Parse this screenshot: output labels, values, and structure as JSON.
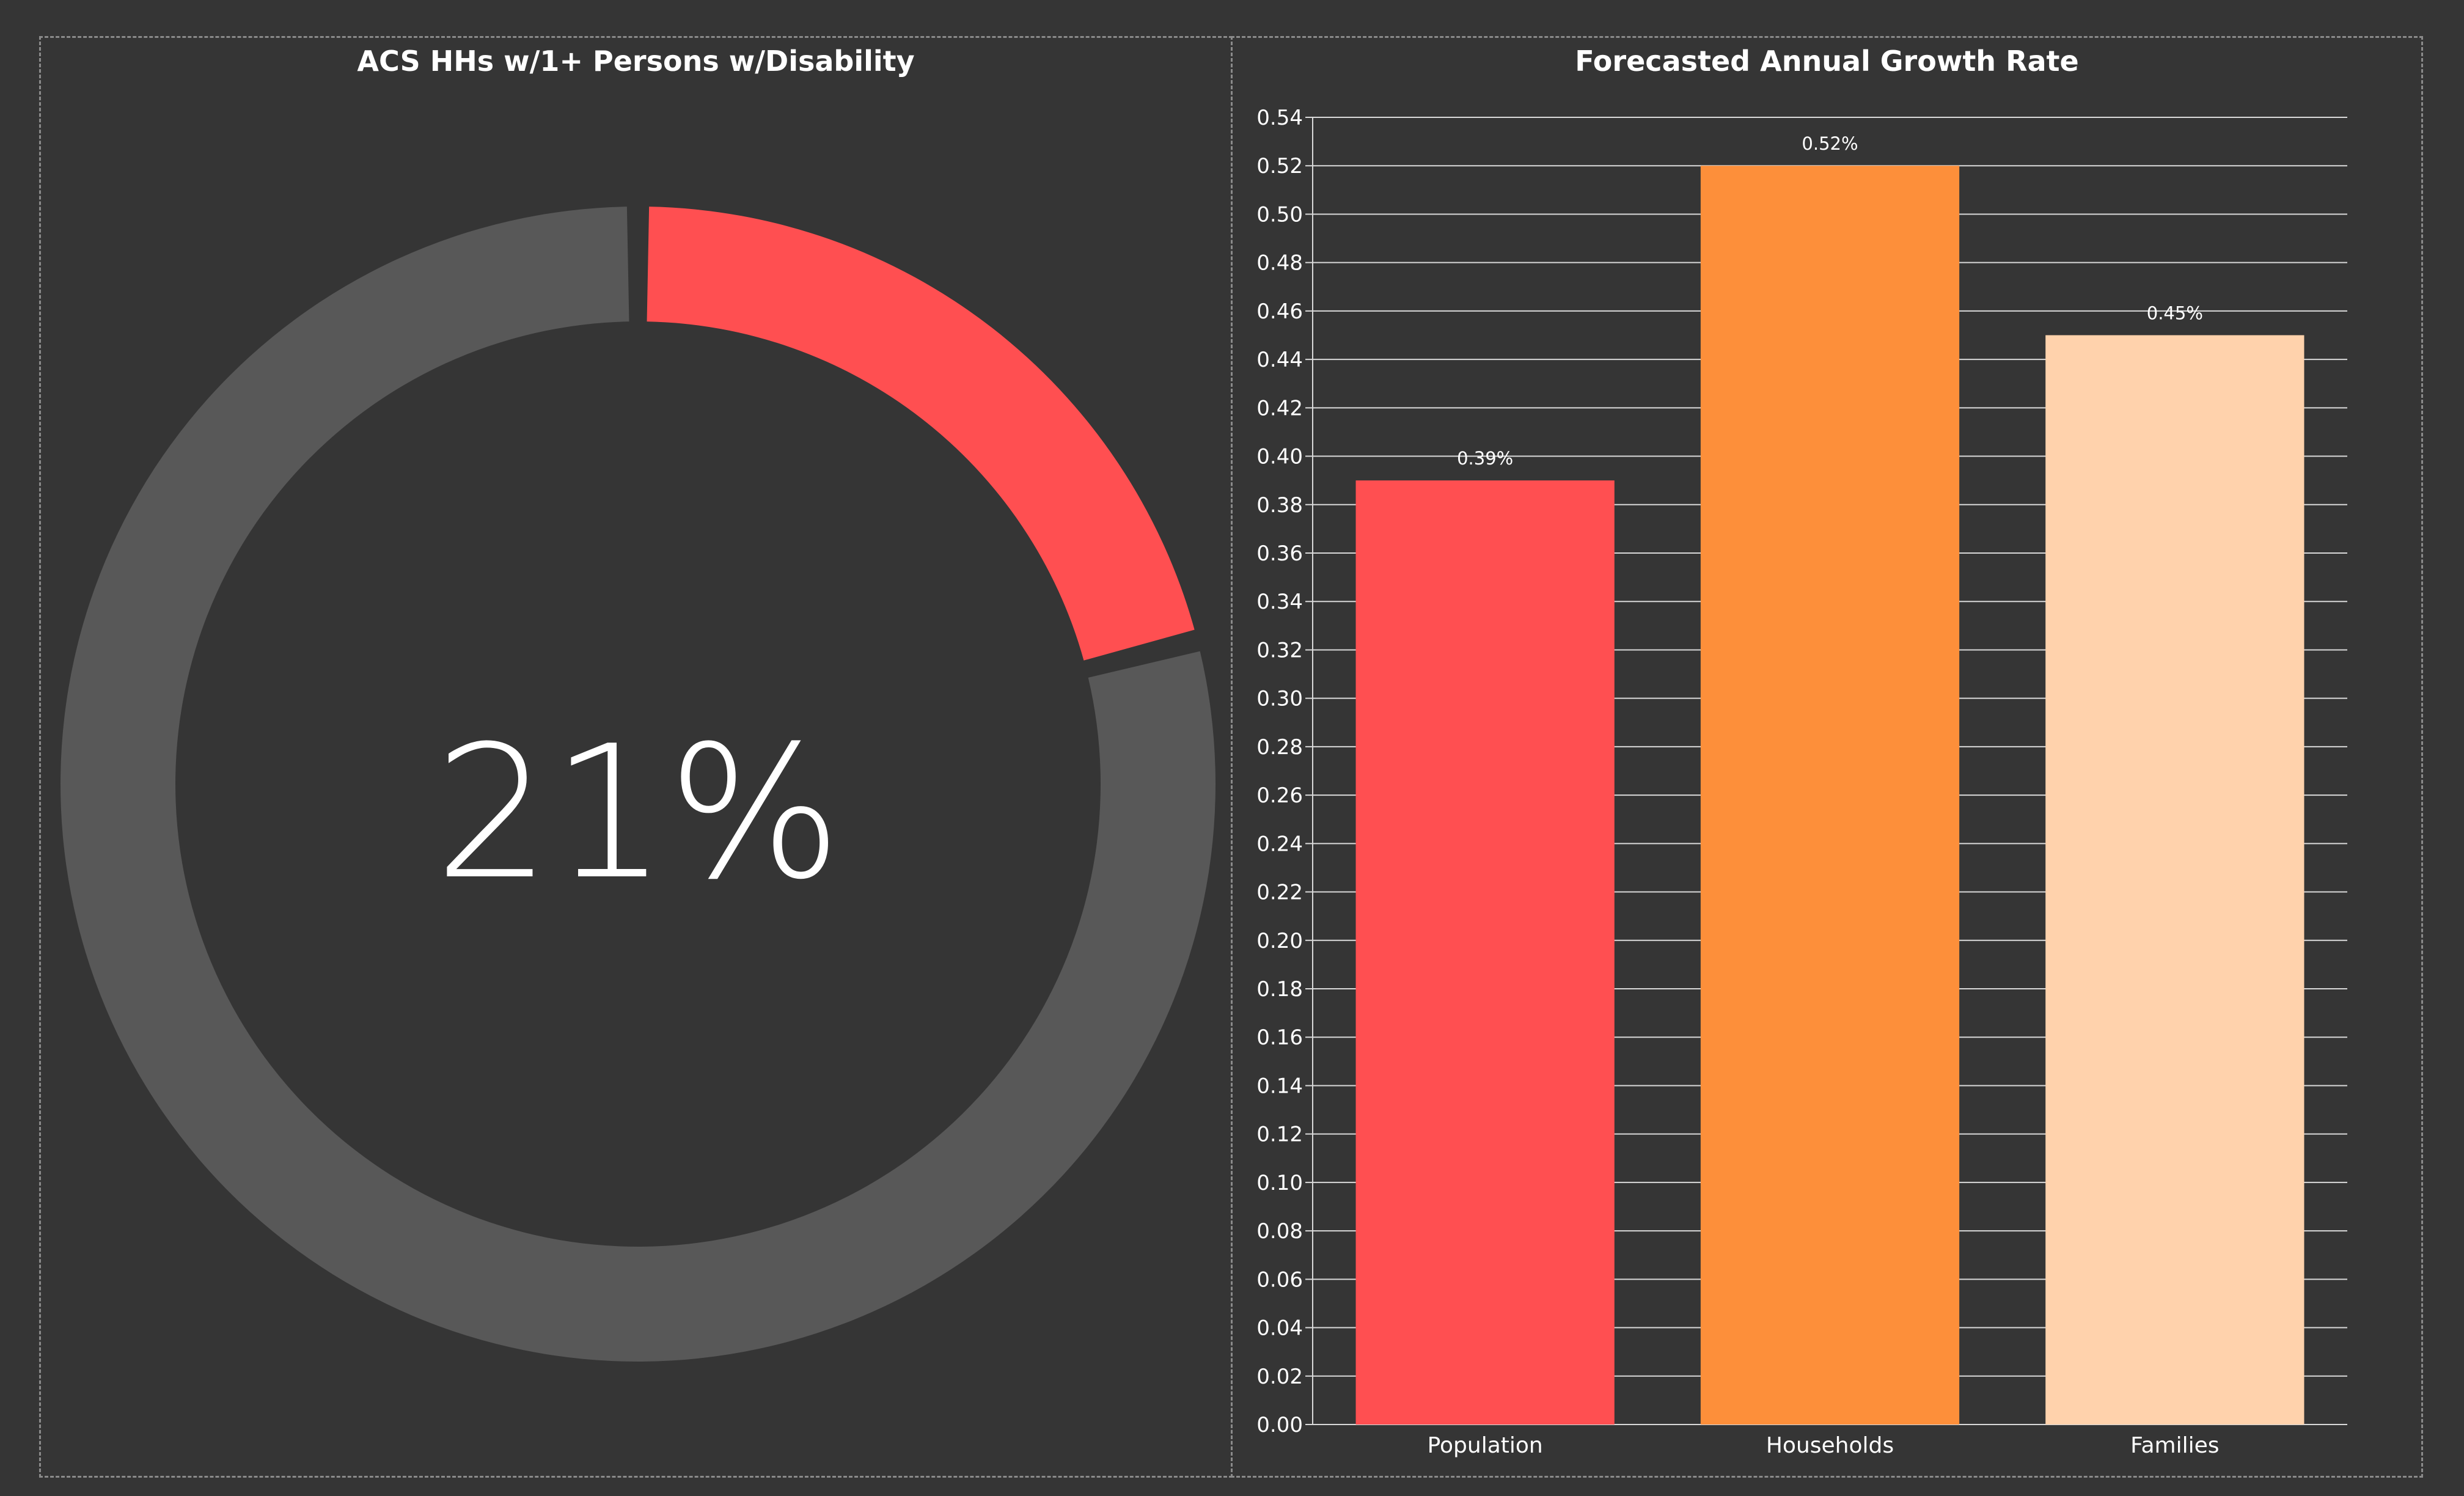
{
  "donut": {
    "title": "ACS HHs w/1+ Persons w/Disability",
    "value_label": "21%",
    "value": 0.21,
    "colors": {
      "value": "#ff4f51",
      "remainder": "#585858"
    }
  },
  "bar": {
    "title": "Forecasted Annual Growth Rate",
    "y_ticks": [
      "0.00",
      "0.02",
      "0.04",
      "0.06",
      "0.08",
      "0.10",
      "0.12",
      "0.14",
      "0.16",
      "0.18",
      "0.20",
      "0.22",
      "0.24",
      "0.26",
      "0.28",
      "0.30",
      "0.32",
      "0.34",
      "0.36",
      "0.38",
      "0.40",
      "0.42",
      "0.44",
      "0.46",
      "0.48",
      "0.50",
      "0.52",
      "0.54"
    ],
    "data_labels": [
      "0.39%",
      "0.52%",
      "0.45%"
    ]
  },
  "chart_data": [
    {
      "type": "pie",
      "title": "ACS HHs w/1+ Persons w/Disability",
      "center_label": "21%",
      "slices": [
        {
          "value": 21,
          "color": "#ff4f51"
        },
        {
          "value": 79,
          "color": "#585858"
        }
      ]
    },
    {
      "type": "bar",
      "title": "Forecasted Annual Growth Rate",
      "categories": [
        "Population",
        "Households",
        "Families"
      ],
      "values": [
        0.39,
        0.52,
        0.45
      ],
      "data_labels": [
        "0.39%",
        "0.52%",
        "0.45%"
      ],
      "colors": [
        "#ff4f51",
        "#fd8f3a",
        "#ffd2ac"
      ],
      "ylim": [
        0,
        0.54
      ],
      "ytick_step": 0.02,
      "grid": true,
      "xlabel": "",
      "ylabel": ""
    }
  ]
}
